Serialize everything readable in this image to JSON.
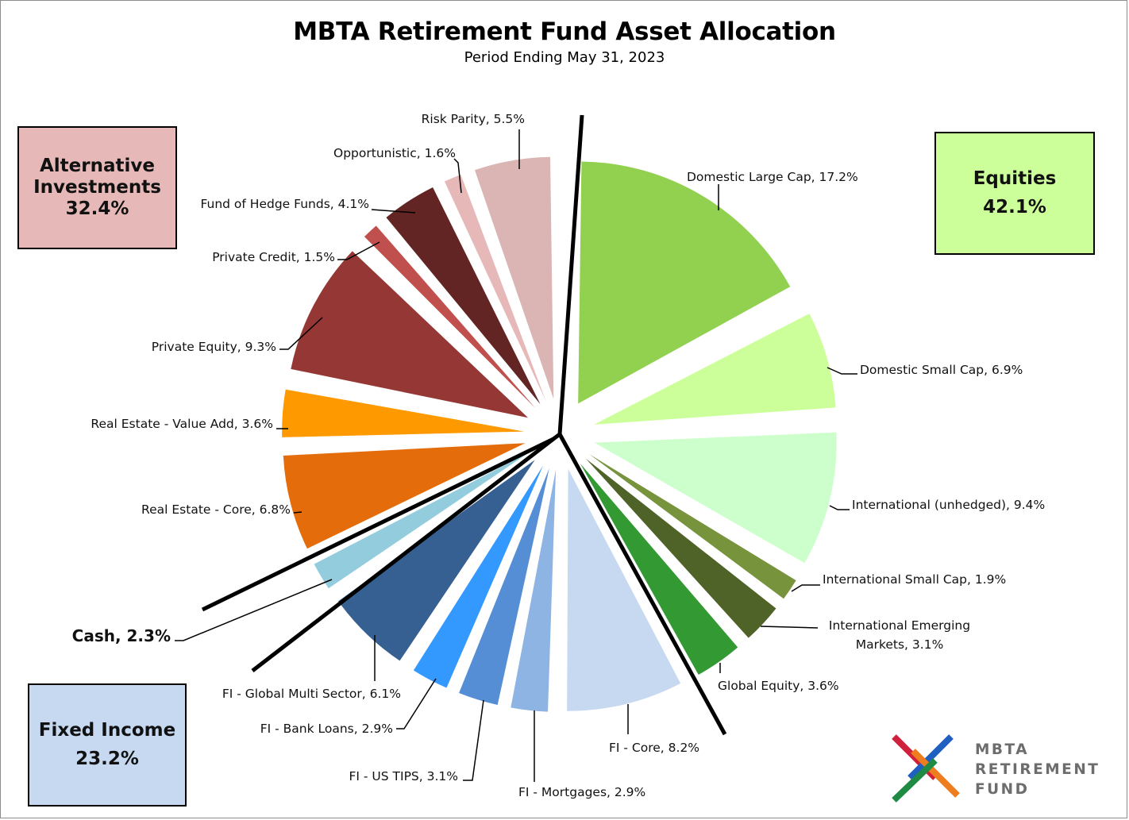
{
  "chart_data": {
    "type": "pie",
    "title": "MBTA Retirement Fund Asset Allocation",
    "subtitle": "Period Ending May 31, 2023",
    "start_angle_deg": 0,
    "direction": "clockwise",
    "exploded": true,
    "slices": [
      {
        "label": "Domestic Large Cap",
        "value": 17.2,
        "color": "#92d050",
        "group": "Equities"
      },
      {
        "label": "Domestic Small Cap",
        "value": 6.9,
        "color": "#ccff99",
        "group": "Equities"
      },
      {
        "label": "International (unhedged)",
        "value": 9.4,
        "color": "#ccffcc",
        "group": "Equities"
      },
      {
        "label": "International Small Cap",
        "value": 1.9,
        "color": "#77933c",
        "group": "Equities"
      },
      {
        "label": "International Emerging Markets",
        "value": 3.1,
        "color": "#4f6228",
        "group": "Equities"
      },
      {
        "label": "Global Equity",
        "value": 3.6,
        "color": "#339933",
        "group": "Equities"
      },
      {
        "label": "FI - Core",
        "value": 8.2,
        "color": "#c6d9f1",
        "group": "Fixed Income"
      },
      {
        "label": "FI - Mortgages",
        "value": 2.9,
        "color": "#8eb4e3",
        "group": "Fixed Income"
      },
      {
        "label": "FI - US TIPS",
        "value": 3.1,
        "color": "#558ed5",
        "group": "Fixed Income"
      },
      {
        "label": "FI - Bank Loans",
        "value": 2.9,
        "color": "#3399ff",
        "group": "Fixed Income"
      },
      {
        "label": "FI - Global Multi Sector",
        "value": 6.1,
        "color": "#376092",
        "group": "Fixed Income"
      },
      {
        "label": "Cash",
        "value": 2.3,
        "color": "#93cddd",
        "group": "Cash"
      },
      {
        "label": "Real Estate - Core",
        "value": 6.8,
        "color": "#e46c0a",
        "group": "Alternative Investments"
      },
      {
        "label": "Real Estate - Value Add",
        "value": 3.6,
        "color": "#ff9900",
        "group": "Alternative Investments"
      },
      {
        "label": "Private Equity",
        "value": 9.3,
        "color": "#953735",
        "group": "Alternative Investments"
      },
      {
        "label": "Private Credit",
        "value": 1.5,
        "color": "#c0504d",
        "group": "Alternative Investments"
      },
      {
        "label": "Fund of Hedge Funds",
        "value": 4.1,
        "color": "#632523",
        "group": "Alternative Investments"
      },
      {
        "label": "Opportunistic",
        "value": 1.6,
        "color": "#e6b9b8",
        "group": "Alternative Investments"
      },
      {
        "label": "Risk Parity",
        "value": 5.5,
        "color": "#dbb5b4",
        "group": "Alternative Investments"
      }
    ],
    "groups": [
      {
        "name": "Equities",
        "value": 42.1,
        "color": "#ccff99"
      },
      {
        "name": "Fixed Income",
        "value": 23.2,
        "color": "#c6d9f1"
      },
      {
        "name": "Alternative Investments",
        "value": 32.4,
        "color": "#e6b9b8"
      },
      {
        "name": "Cash",
        "value": 2.3,
        "color": "#93cddd"
      }
    ]
  },
  "labels": {
    "title": "MBTA Retirement Fund Asset Allocation",
    "subtitle": "Period Ending May 31, 2023",
    "slice_labels": {
      "domestic_large_cap": "Domestic Large Cap, 17.2%",
      "domestic_small_cap": "Domestic Small Cap, 6.9%",
      "international_unhedged": "International (unhedged), 9.4%",
      "international_small_cap": "International Small Cap, 1.9%",
      "international_emerging_1": "International Emerging",
      "international_emerging_2": "Markets, 3.1%",
      "global_equity": "Global Equity, 3.6%",
      "fi_core": "FI - Core, 8.2%",
      "fi_mortgages": "FI - Mortgages, 2.9%",
      "fi_us_tips": "FI - US TIPS, 3.1%",
      "fi_bank_loans": "FI - Bank Loans, 2.9%",
      "fi_global_multi_sector": "FI - Global Multi Sector, 6.1%",
      "cash": "Cash, 2.3%",
      "real_estate_core": "Real Estate - Core, 6.8%",
      "real_estate_value_add": "Real Estate - Value Add, 3.6%",
      "private_equity": "Private Equity, 9.3%",
      "private_credit": "Private Credit, 1.5%",
      "fund_of_hedge_funds": "Fund of Hedge Funds, 4.1%",
      "opportunistic": "Opportunistic, 1.6%",
      "risk_parity": "Risk Parity, 5.5%"
    }
  },
  "group_boxes": {
    "alternative": {
      "line1": "Alternative",
      "line2": "Investments",
      "value": "32.4%"
    },
    "equities": {
      "line1": "Equities",
      "value": "42.1%"
    },
    "fixed_income": {
      "line1": "Fixed Income",
      "value": "23.2%"
    }
  },
  "logo": {
    "line1": "MBTA",
    "line2": "RETIREMENT",
    "line3": "FUND",
    "colors": {
      "red": "#d0213c",
      "blue": "#1f5fbf",
      "green": "#1e8a44",
      "orange": "#ee7d1f"
    }
  }
}
